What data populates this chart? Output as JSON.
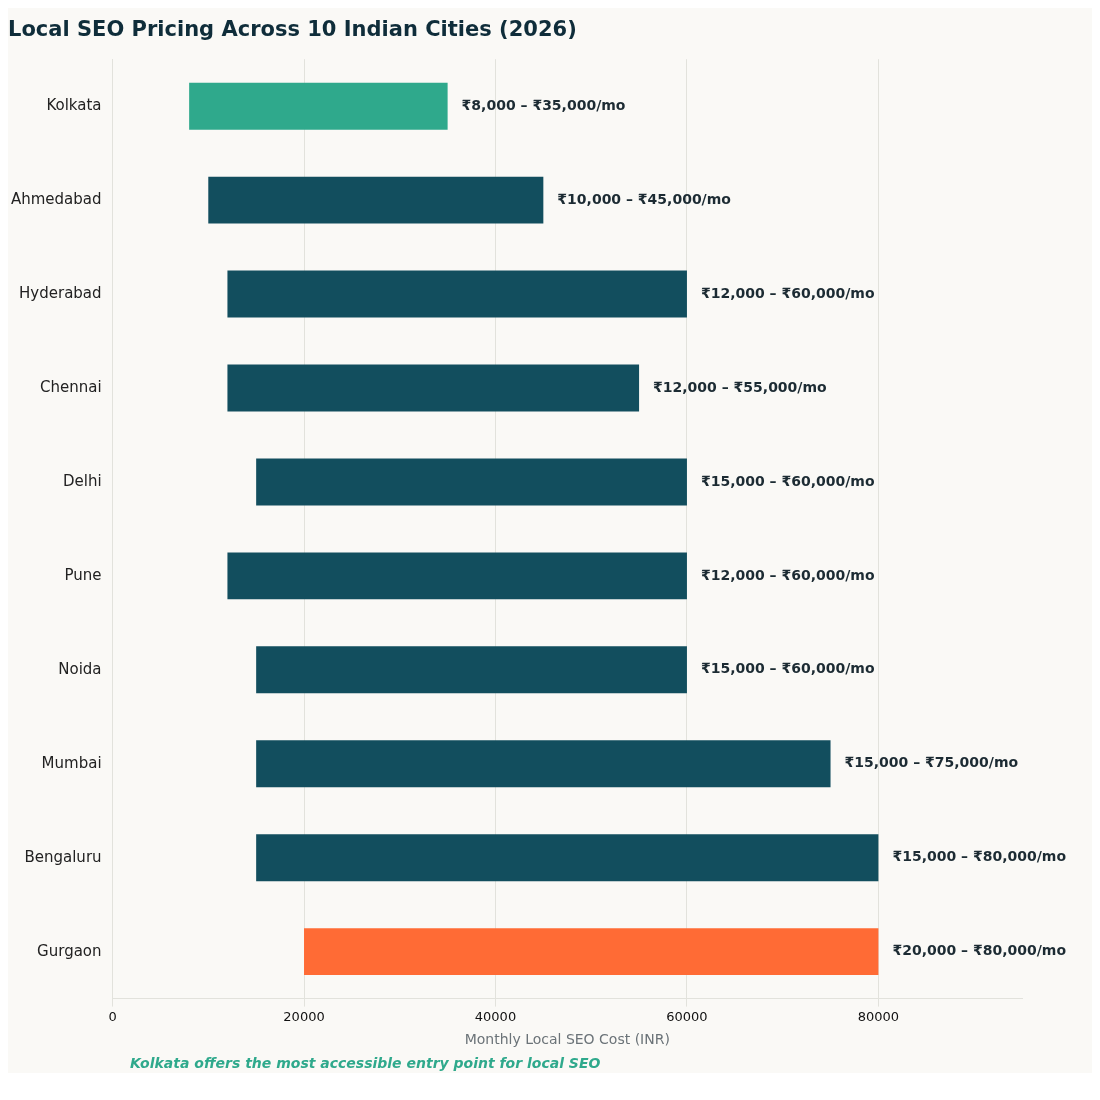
{
  "chart_data": {
    "type": "bar",
    "orientation": "horizontal",
    "title": "Local SEO Pricing Across 10 Indian Cities (2026)",
    "xlabel": "Monthly Local SEO Cost (INR)",
    "categories": [
      "Kolkata",
      "Ahmedabad",
      "Hyderabad",
      "Chennai",
      "Delhi",
      "Pune",
      "Noida",
      "Mumbai",
      "Bengaluru",
      "Gurgaon"
    ],
    "base": [
      8000,
      10000,
      12000,
      12000,
      15000,
      12000,
      15000,
      15000,
      15000,
      20000
    ],
    "values": [
      27000,
      35000,
      48000,
      43000,
      45000,
      48000,
      45000,
      60000,
      65000,
      60000
    ],
    "colors": [
      "#2fa98c",
      "#124e5e",
      "#124e5e",
      "#124e5e",
      "#124e5e",
      "#124e5e",
      "#124e5e",
      "#124e5e",
      "#124e5e",
      "#ff6b35"
    ],
    "value_labels": [
      "₹8,000 – ₹35,000/mo",
      "₹10,000 – ₹45,000/mo",
      "₹12,000 – ₹60,000/mo",
      "₹12,000 – ₹55,000/mo",
      "₹15,000 – ₹60,000/mo",
      "₹12,000 – ₹60,000/mo",
      "₹15,000 – ₹60,000/mo",
      "₹15,000 – ₹75,000/mo",
      "₹15,000 – ₹80,000/mo",
      "₹20,000 – ₹80,000/mo"
    ],
    "xlim": [
      0,
      95000
    ],
    "xticks": [
      0,
      20000,
      40000,
      60000,
      80000
    ],
    "grid": "x",
    "legend": false,
    "annotations": [
      "Kolkata offers the most accessible entry point for local SEO"
    ]
  }
}
